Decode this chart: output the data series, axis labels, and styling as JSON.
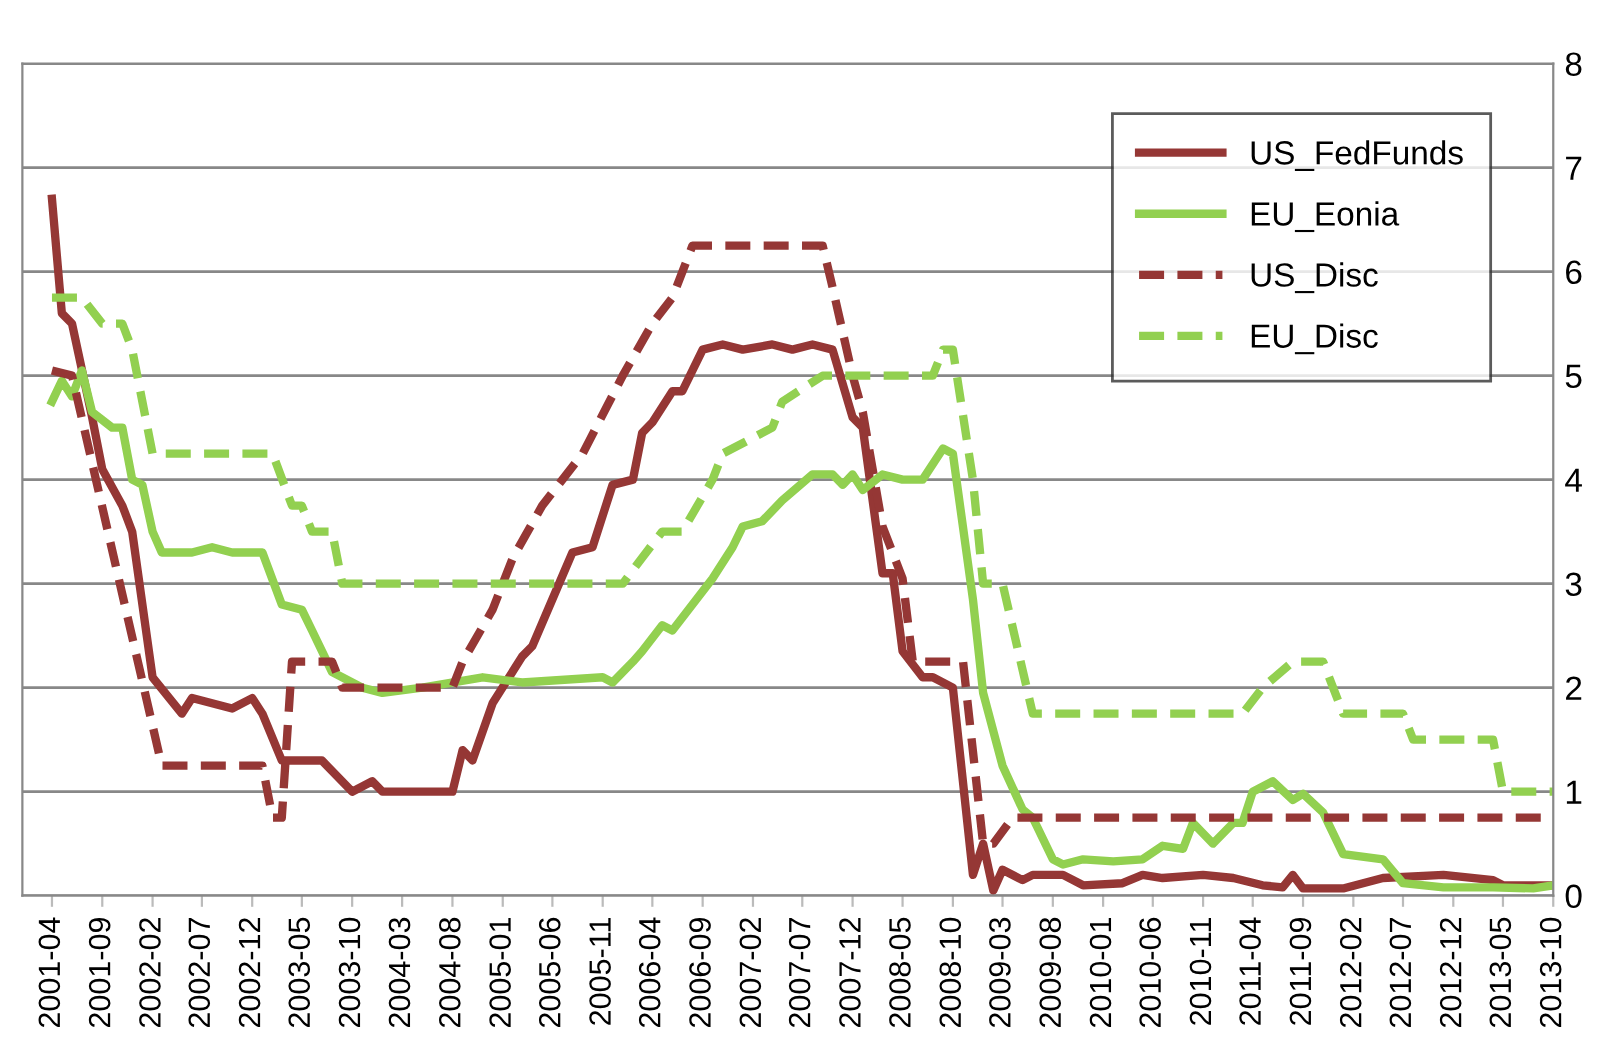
{
  "chart_data": {
    "type": "line",
    "xlim": [
      "2001-01",
      "2013-10"
    ],
    "xticks": [
      "2001-04",
      "2001-09",
      "2002-02",
      "2002-07",
      "2002-12",
      "2003-05",
      "2003-10",
      "2004-03",
      "2004-08",
      "2005-01",
      "2005-06",
      "2005-11",
      "2006-04",
      "2006-09",
      "2007-02",
      "2007-07",
      "2007-12",
      "2008-05",
      "2008-10",
      "2009-03",
      "2009-08",
      "2010-01",
      "2010-06",
      "2010-11",
      "2011-04",
      "2011-09",
      "2012-02",
      "2012-07",
      "2012-12",
      "2013-05",
      "2013-10"
    ],
    "ylim": [
      0,
      8
    ],
    "yticks": [
      0,
      1,
      2,
      3,
      4,
      5,
      6,
      7,
      8
    ],
    "grid": "y",
    "legend": "top right",
    "marker": "none",
    "series": [
      {
        "name": "US_FedFunds",
        "color": "#953735",
        "line_style": "solid",
        "x": [
          "2001-04",
          "2001-05",
          "2001-06",
          "2001-08",
          "2001-09",
          "2001-11",
          "2001-12",
          "2002-02",
          "2002-05",
          "2002-06",
          "2002-10",
          "2002-12",
          "2003-01",
          "2003-03",
          "2003-07",
          "2003-10",
          "2003-12",
          "2004-01",
          "2004-08",
          "2004-09",
          "2004-10",
          "2004-12",
          "2005-03",
          "2005-04",
          "2005-06",
          "2005-08",
          "2005-10",
          "2005-12",
          "2006-02",
          "2006-03",
          "2006-04",
          "2006-06",
          "2006-07",
          "2006-09",
          "2006-11",
          "2007-01",
          "2007-04",
          "2007-06",
          "2007-08",
          "2007-10",
          "2007-12",
          "2008-01",
          "2008-03",
          "2008-04",
          "2008-05",
          "2008-07",
          "2008-08",
          "2008-10",
          "2008-12",
          "2009-01",
          "2009-02",
          "2009-03",
          "2009-05",
          "2009-06",
          "2009-09",
          "2009-11",
          "2010-03",
          "2010-05",
          "2010-07",
          "2010-11",
          "2011-02",
          "2011-05",
          "2011-07",
          "2011-08",
          "2011-09",
          "2012-01",
          "2012-05",
          "2012-11",
          "2013-04",
          "2013-05",
          "2013-10"
        ],
        "values": [
          6.7,
          5.6,
          5.5,
          4.6,
          4.1,
          3.75,
          3.5,
          2.1,
          1.75,
          1.9,
          1.8,
          1.9,
          1.75,
          1.3,
          1.3,
          1.0,
          1.1,
          1.0,
          1.0,
          1.4,
          1.3,
          1.85,
          2.3,
          2.4,
          2.85,
          3.3,
          3.35,
          3.95,
          4.0,
          4.45,
          4.55,
          4.85,
          4.85,
          5.25,
          5.3,
          5.25,
          5.3,
          5.25,
          5.3,
          5.25,
          4.6,
          4.5,
          3.1,
          3.1,
          2.35,
          2.1,
          2.1,
          2.0,
          0.2,
          0.5,
          0.05,
          0.25,
          0.15,
          0.2,
          0.2,
          0.1,
          0.12,
          0.2,
          0.17,
          0.2,
          0.17,
          0.1,
          0.08,
          0.2,
          0.07,
          0.07,
          0.17,
          0.2,
          0.15,
          0.1,
          0.1
        ]
      },
      {
        "name": "EU_Eonia",
        "color": "#92d050",
        "line_style": "solid",
        "x": [
          "2001-04",
          "2001-05",
          "2001-06",
          "2001-07",
          "2001-08",
          "2001-10",
          "2001-11",
          "2001-12",
          "2002-01",
          "2002-02",
          "2002-03",
          "2002-06",
          "2002-08",
          "2002-10",
          "2003-01",
          "2003-03",
          "2003-05",
          "2003-06",
          "2003-08",
          "2003-11",
          "2004-01",
          "2004-05",
          "2004-11",
          "2005-03",
          "2005-11",
          "2005-12",
          "2006-02",
          "2006-03",
          "2006-05",
          "2006-06",
          "2006-10",
          "2006-12",
          "2007-01",
          "2007-03",
          "2007-05",
          "2007-08",
          "2007-10",
          "2007-11",
          "2007-12",
          "2008-01",
          "2008-03",
          "2008-05",
          "2008-07",
          "2008-09",
          "2008-10",
          "2008-12",
          "2009-01",
          "2009-03",
          "2009-05",
          "2009-06",
          "2009-08",
          "2009-09",
          "2009-11",
          "2010-02",
          "2010-05",
          "2010-07",
          "2010-09",
          "2010-10",
          "2010-12",
          "2011-02",
          "2011-03",
          "2011-04",
          "2011-06",
          "2011-08",
          "2011-09",
          "2011-11",
          "2012-01",
          "2012-05",
          "2012-07",
          "2012-11",
          "2013-04",
          "2013-08",
          "2013-10"
        ],
        "values": [
          4.75,
          4.95,
          4.8,
          5.05,
          4.65,
          4.5,
          4.5,
          4.0,
          3.95,
          3.5,
          3.3,
          3.3,
          3.35,
          3.3,
          3.3,
          2.8,
          2.75,
          2.55,
          2.15,
          2.0,
          1.95,
          2.0,
          2.1,
          2.05,
          2.1,
          2.05,
          2.25,
          2.35,
          2.6,
          2.55,
          3.05,
          3.35,
          3.55,
          3.6,
          3.8,
          4.05,
          4.05,
          3.95,
          4.05,
          3.9,
          4.05,
          4.0,
          4.0,
          4.3,
          4.25,
          2.85,
          1.95,
          1.25,
          0.83,
          0.75,
          0.35,
          0.3,
          0.35,
          0.33,
          0.35,
          0.48,
          0.45,
          0.7,
          0.5,
          0.7,
          0.7,
          1.0,
          1.1,
          0.92,
          0.98,
          0.8,
          0.4,
          0.35,
          0.12,
          0.08,
          0.08,
          0.07,
          0.1
        ]
      },
      {
        "name": "US_Disc",
        "color": "#953735",
        "line_style": "dashed",
        "x": [
          "2001-04",
          "2001-06",
          "2002-03",
          "2003-01",
          "2003-02",
          "2003-03",
          "2003-04",
          "2003-08",
          "2003-09",
          "2004-08",
          "2004-09",
          "2004-12",
          "2005-02",
          "2005-05",
          "2005-09",
          "2006-01",
          "2006-04",
          "2006-06",
          "2006-08",
          "2007-09",
          "2007-10",
          "2007-12",
          "2008-01",
          "2008-03",
          "2008-05",
          "2008-06",
          "2008-11",
          "2009-01",
          "2009-02",
          "2009-04",
          "2013-10"
        ],
        "values": [
          5.05,
          5.0,
          1.25,
          1.25,
          0.75,
          0.75,
          2.25,
          2.25,
          2.0,
          2.0,
          2.25,
          2.75,
          3.25,
          3.75,
          4.25,
          5.0,
          5.5,
          5.75,
          6.25,
          6.25,
          5.85,
          5.0,
          4.65,
          3.55,
          3.05,
          2.25,
          2.25,
          0.5,
          0.5,
          0.75,
          0.75
        ]
      },
      {
        "name": "EU_Disc",
        "color": "#92d050",
        "line_style": "dashed",
        "x": [
          "2001-04",
          "2001-07",
          "2001-09",
          "2001-11",
          "2001-12",
          "2002-02",
          "2003-02",
          "2003-04",
          "2003-05",
          "2003-06",
          "2003-08",
          "2003-09",
          "2006-01",
          "2006-03",
          "2006-05",
          "2006-07",
          "2006-10",
          "2006-11",
          "2007-04",
          "2007-05",
          "2007-09",
          "2008-08",
          "2008-09",
          "2008-10",
          "2008-12",
          "2009-01",
          "2009-03",
          "2009-06",
          "2011-03",
          "2011-05",
          "2011-08",
          "2011-11",
          "2012-01",
          "2012-07",
          "2012-08",
          "2013-04",
          "2013-05",
          "2013-10"
        ],
        "values": [
          5.75,
          5.75,
          5.5,
          5.5,
          5.25,
          4.25,
          4.25,
          3.75,
          3.75,
          3.5,
          3.5,
          3.0,
          3.0,
          3.25,
          3.5,
          3.5,
          4.0,
          4.25,
          4.5,
          4.75,
          5.0,
          5.0,
          5.25,
          5.25,
          4.0,
          3.0,
          3.0,
          1.75,
          1.75,
          2.0,
          2.25,
          2.25,
          1.75,
          1.75,
          1.5,
          1.5,
          1.0,
          1.0
        ]
      }
    ]
  }
}
